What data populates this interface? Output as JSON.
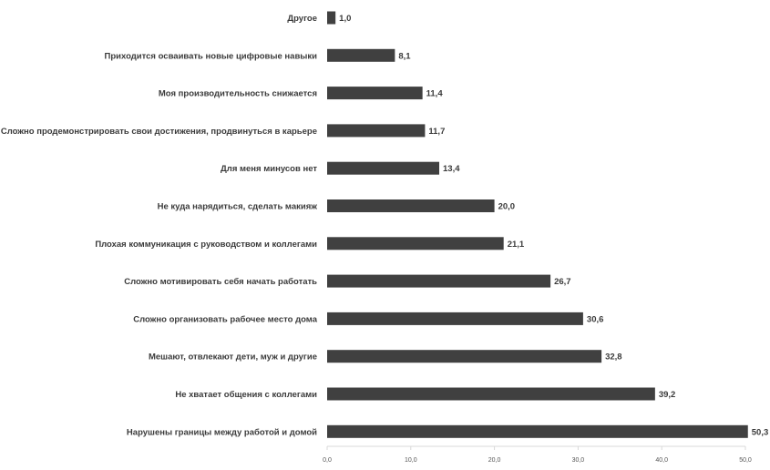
{
  "chart_data": {
    "type": "bar",
    "orientation": "horizontal",
    "title": "",
    "xlabel": "",
    "ylabel": "",
    "categories": [
      "Другое",
      "Приходится осваивать новые цифровые навыки",
      "Моя производительность снижается",
      "Сложно продемонстрировать свои достижения, продвинуться в карьере",
      "Для меня минусов нет",
      "Не куда нарядиться, сделать макияж",
      "Плохая коммуникация с руководством и коллегами",
      "Сложно мотивировать себя начать работать",
      "Сложно организовать рабочее место дома",
      "Мешают, отвлекают дети, муж и другие",
      "Не хватает общения с коллегами",
      "Нарушены границы между работой и домой"
    ],
    "values": [
      1.0,
      8.1,
      11.4,
      11.7,
      13.4,
      20.0,
      21.1,
      26.7,
      30.6,
      32.8,
      39.2,
      50.3
    ],
    "value_labels": [
      "1,0",
      "8,1",
      "11,4",
      "11,7",
      "13,4",
      "20,0",
      "21,1",
      "26,7",
      "30,6",
      "32,8",
      "39,2",
      "50,3"
    ],
    "xlim": [
      0,
      50
    ],
    "xticks": [
      0,
      10,
      20,
      30,
      40,
      50
    ],
    "xtick_labels": [
      "0,0",
      "10,0",
      "20,0",
      "30,0",
      "40,0",
      "50,0"
    ],
    "grid": false,
    "legend": "none",
    "bar_color": "#404040",
    "axis_color": "#d9d9d9",
    "text_color": "#3a3a3a"
  }
}
